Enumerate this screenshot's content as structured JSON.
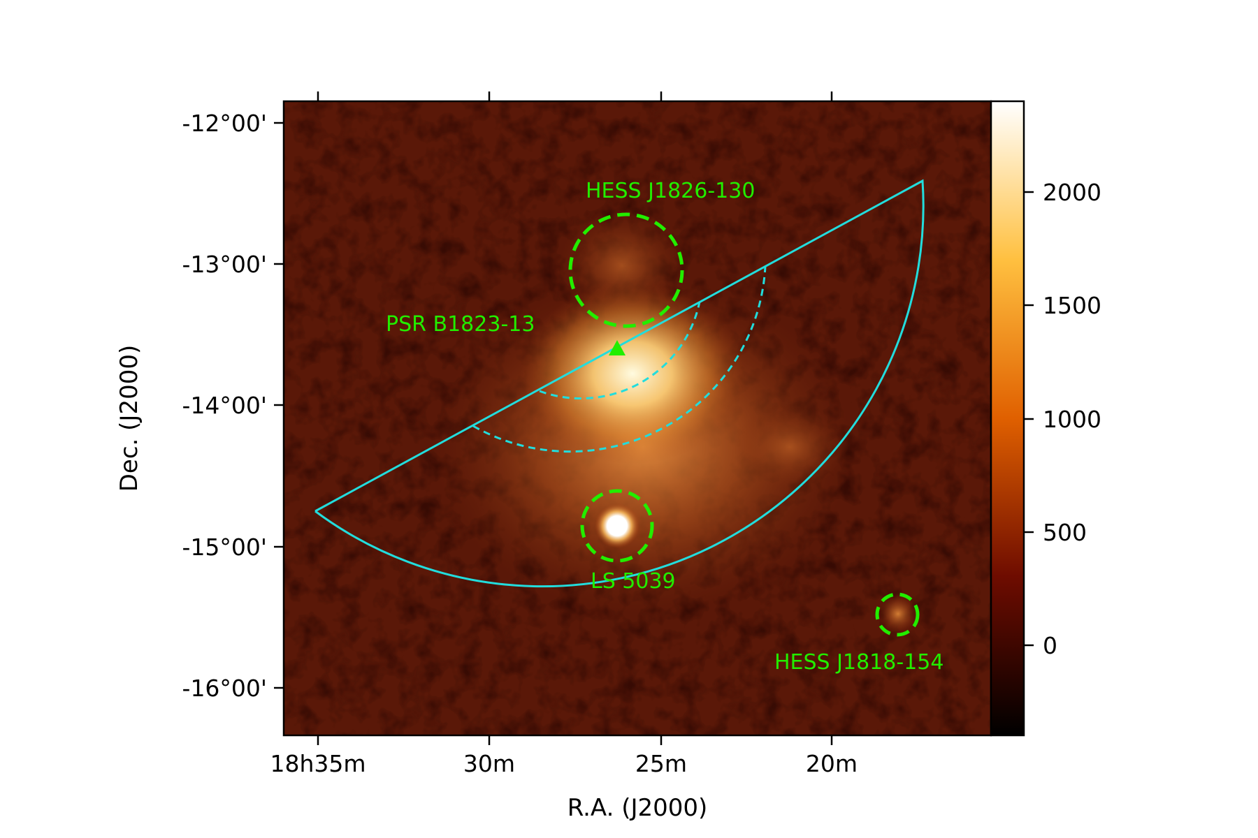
{
  "figure": {
    "xlabel": "R.A. (J2000)",
    "ylabel": "Dec. (J2000)",
    "x_ticks": [
      "18h35m",
      "30m",
      "25m",
      "20m"
    ],
    "y_ticks": [
      "-12°00'",
      "-13°00'",
      "-14°00'",
      "-15°00'",
      "-16°00'"
    ],
    "colorbar": {
      "ticks": [
        "2000",
        "1500",
        "1000",
        "500",
        "0"
      ],
      "range": [
        -400,
        2400
      ],
      "colormap": "afmhot"
    }
  },
  "sources": [
    {
      "name": "HESS J1826-130",
      "marker": "dashed-circle"
    },
    {
      "name": "PSR B1823-13",
      "marker": "triangle"
    },
    {
      "name": "LS 5039",
      "marker": "dashed-circle"
    },
    {
      "name": "HESS J1818-154",
      "marker": "dashed-circle"
    }
  ],
  "colors": {
    "source_markers": "#22ee00",
    "region_outline": "#22dddd",
    "background_map": "#5a1808"
  }
}
